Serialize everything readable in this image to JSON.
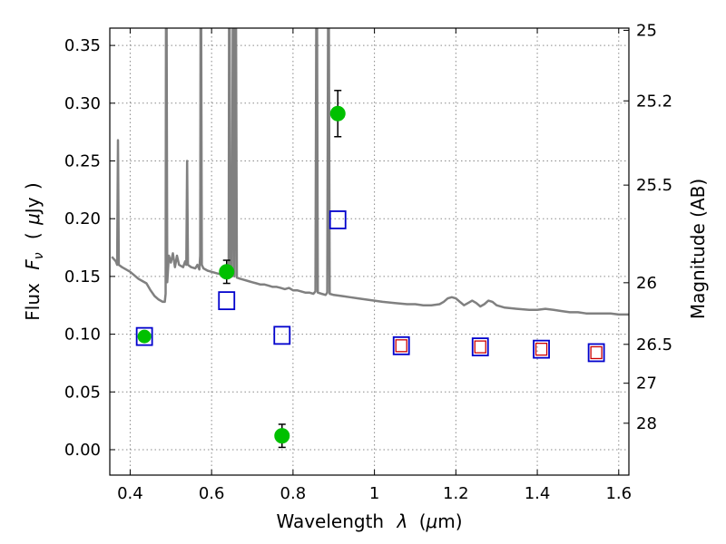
{
  "chart_data": {
    "type": "scatter",
    "title": "",
    "xlabel_parts": [
      "Wavelength",
      "λ",
      "(",
      "μ",
      "m)"
    ],
    "ylabel_parts": [
      "Flux",
      "F",
      "ν",
      "(",
      "μ",
      "Jy",
      ")"
    ],
    "y2label": "Magnitude (AB)",
    "xlim": [
      0.35,
      1.625
    ],
    "ylim": [
      -0.022,
      0.365
    ],
    "grid": true,
    "xticks": [
      {
        "value": 0.4,
        "label": "0.4"
      },
      {
        "value": 0.6,
        "label": "0.6"
      },
      {
        "value": 0.8,
        "label": "0.8"
      },
      {
        "value": 1.0,
        "label": "1"
      },
      {
        "value": 1.2,
        "label": "1.2"
      },
      {
        "value": 1.4,
        "label": "1.4"
      },
      {
        "value": 1.6,
        "label": "1.6"
      }
    ],
    "yticks": [
      {
        "value": 0.0,
        "label": "0.00"
      },
      {
        "value": 0.05,
        "label": "0.05"
      },
      {
        "value": 0.1,
        "label": "0.10"
      },
      {
        "value": 0.15,
        "label": "0.15"
      },
      {
        "value": 0.2,
        "label": "0.20"
      },
      {
        "value": 0.25,
        "label": "0.25"
      },
      {
        "value": 0.3,
        "label": "0.30"
      },
      {
        "value": 0.35,
        "label": "0.35"
      }
    ],
    "y2ticks": [
      {
        "value": 25.0,
        "label": "25"
      },
      {
        "value": 25.2,
        "label": "25.2"
      },
      {
        "value": 25.5,
        "label": "25.5"
      },
      {
        "value": 26.0,
        "label": "26"
      },
      {
        "value": 26.5,
        "label": "26.5"
      },
      {
        "value": 27.0,
        "label": "27"
      },
      {
        "value": 28.0,
        "label": "28"
      }
    ],
    "model_spectrum": {
      "color": "#808080",
      "points": [
        [
          0.355,
          0.167
        ],
        [
          0.365,
          0.163
        ],
        [
          0.368,
          0.16
        ],
        [
          0.37,
          0.268
        ],
        [
          0.372,
          0.16
        ],
        [
          0.38,
          0.158
        ],
        [
          0.39,
          0.156
        ],
        [
          0.4,
          0.154
        ],
        [
          0.41,
          0.151
        ],
        [
          0.42,
          0.148
        ],
        [
          0.43,
          0.146
        ],
        [
          0.44,
          0.144
        ],
        [
          0.45,
          0.138
        ],
        [
          0.46,
          0.133
        ],
        [
          0.47,
          0.13
        ],
        [
          0.48,
          0.128
        ],
        [
          0.485,
          0.128
        ],
        [
          0.487,
          0.135
        ],
        [
          0.488,
          0.365
        ],
        [
          0.4895,
          0.365
        ],
        [
          0.491,
          0.145
        ],
        [
          0.495,
          0.168
        ],
        [
          0.5,
          0.162
        ],
        [
          0.505,
          0.17
        ],
        [
          0.51,
          0.158
        ],
        [
          0.515,
          0.168
        ],
        [
          0.52,
          0.16
        ],
        [
          0.53,
          0.158
        ],
        [
          0.535,
          0.163
        ],
        [
          0.538,
          0.16
        ],
        [
          0.54,
          0.25
        ],
        [
          0.542,
          0.16
        ],
        [
          0.55,
          0.158
        ],
        [
          0.56,
          0.157
        ],
        [
          0.565,
          0.16
        ],
        [
          0.57,
          0.156
        ],
        [
          0.572,
          0.168
        ],
        [
          0.573,
          0.365
        ],
        [
          0.5745,
          0.365
        ],
        [
          0.576,
          0.16
        ],
        [
          0.58,
          0.157
        ],
        [
          0.59,
          0.155
        ],
        [
          0.6,
          0.154
        ],
        [
          0.61,
          0.153
        ],
        [
          0.62,
          0.152
        ],
        [
          0.63,
          0.151
        ],
        [
          0.64,
          0.151
        ],
        [
          0.642,
          0.16
        ],
        [
          0.643,
          0.365
        ],
        [
          0.6445,
          0.365
        ],
        [
          0.646,
          0.152
        ],
        [
          0.65,
          0.15
        ],
        [
          0.652,
          0.365
        ],
        [
          0.654,
          0.365
        ],
        [
          0.656,
          0.15
        ],
        [
          0.658,
          0.365
        ],
        [
          0.66,
          0.365
        ],
        [
          0.662,
          0.149
        ],
        [
          0.67,
          0.148
        ],
        [
          0.68,
          0.147
        ],
        [
          0.69,
          0.146
        ],
        [
          0.7,
          0.145
        ],
        [
          0.71,
          0.144
        ],
        [
          0.72,
          0.143
        ],
        [
          0.73,
          0.143
        ],
        [
          0.74,
          0.142
        ],
        [
          0.75,
          0.141
        ],
        [
          0.76,
          0.141
        ],
        [
          0.77,
          0.14
        ],
        [
          0.78,
          0.139
        ],
        [
          0.79,
          0.14
        ],
        [
          0.8,
          0.138
        ],
        [
          0.81,
          0.138
        ],
        [
          0.82,
          0.137
        ],
        [
          0.83,
          0.136
        ],
        [
          0.84,
          0.136
        ],
        [
          0.85,
          0.135
        ],
        [
          0.855,
          0.137
        ],
        [
          0.857,
          0.365
        ],
        [
          0.859,
          0.365
        ],
        [
          0.861,
          0.136
        ],
        [
          0.87,
          0.135
        ],
        [
          0.88,
          0.134
        ],
        [
          0.884,
          0.136
        ],
        [
          0.886,
          0.365
        ],
        [
          0.888,
          0.365
        ],
        [
          0.89,
          0.135
        ],
        [
          0.9,
          0.134
        ],
        [
          0.92,
          0.133
        ],
        [
          0.94,
          0.132
        ],
        [
          0.96,
          0.131
        ],
        [
          0.98,
          0.13
        ],
        [
          1.0,
          0.129
        ],
        [
          1.02,
          0.128
        ],
        [
          1.05,
          0.127
        ],
        [
          1.08,
          0.126
        ],
        [
          1.1,
          0.126
        ],
        [
          1.12,
          0.125
        ],
        [
          1.14,
          0.125
        ],
        [
          1.16,
          0.126
        ],
        [
          1.17,
          0.128
        ],
        [
          1.18,
          0.131
        ],
        [
          1.19,
          0.132
        ],
        [
          1.2,
          0.131
        ],
        [
          1.21,
          0.128
        ],
        [
          1.22,
          0.125
        ],
        [
          1.23,
          0.127
        ],
        [
          1.24,
          0.129
        ],
        [
          1.25,
          0.127
        ],
        [
          1.26,
          0.124
        ],
        [
          1.27,
          0.126
        ],
        [
          1.28,
          0.129
        ],
        [
          1.29,
          0.128
        ],
        [
          1.3,
          0.125
        ],
        [
          1.32,
          0.123
        ],
        [
          1.35,
          0.122
        ],
        [
          1.38,
          0.121
        ],
        [
          1.4,
          0.121
        ],
        [
          1.42,
          0.122
        ],
        [
          1.44,
          0.121
        ],
        [
          1.46,
          0.12
        ],
        [
          1.48,
          0.119
        ],
        [
          1.5,
          0.119
        ],
        [
          1.52,
          0.118
        ],
        [
          1.55,
          0.118
        ],
        [
          1.58,
          0.118
        ],
        [
          1.6,
          0.117
        ],
        [
          1.625,
          0.117
        ]
      ]
    },
    "observed_points": {
      "color": "#00c000",
      "points": [
        {
          "x": 0.435,
          "y": 0.098,
          "err": null
        },
        {
          "x": 0.637,
          "y": 0.154,
          "err": 0.01
        },
        {
          "x": 0.773,
          "y": 0.012,
          "err": 0.01
        },
        {
          "x": 0.91,
          "y": 0.291,
          "err": 0.02
        }
      ]
    },
    "model_boxes_blue": {
      "color": "#0000cc",
      "points": [
        {
          "x": 0.435,
          "y": 0.098
        },
        {
          "x": 0.637,
          "y": 0.129
        },
        {
          "x": 0.773,
          "y": 0.099
        },
        {
          "x": 0.91,
          "y": 0.199
        },
        {
          "x": 1.066,
          "y": 0.09
        },
        {
          "x": 1.26,
          "y": 0.089
        },
        {
          "x": 1.41,
          "y": 0.087
        },
        {
          "x": 1.545,
          "y": 0.084
        }
      ]
    },
    "model_boxes_red": {
      "color": "#cc0000",
      "points": [
        {
          "x": 1.066,
          "y": 0.09
        },
        {
          "x": 1.26,
          "y": 0.089
        },
        {
          "x": 1.41,
          "y": 0.087
        },
        {
          "x": 1.545,
          "y": 0.084
        }
      ]
    }
  }
}
